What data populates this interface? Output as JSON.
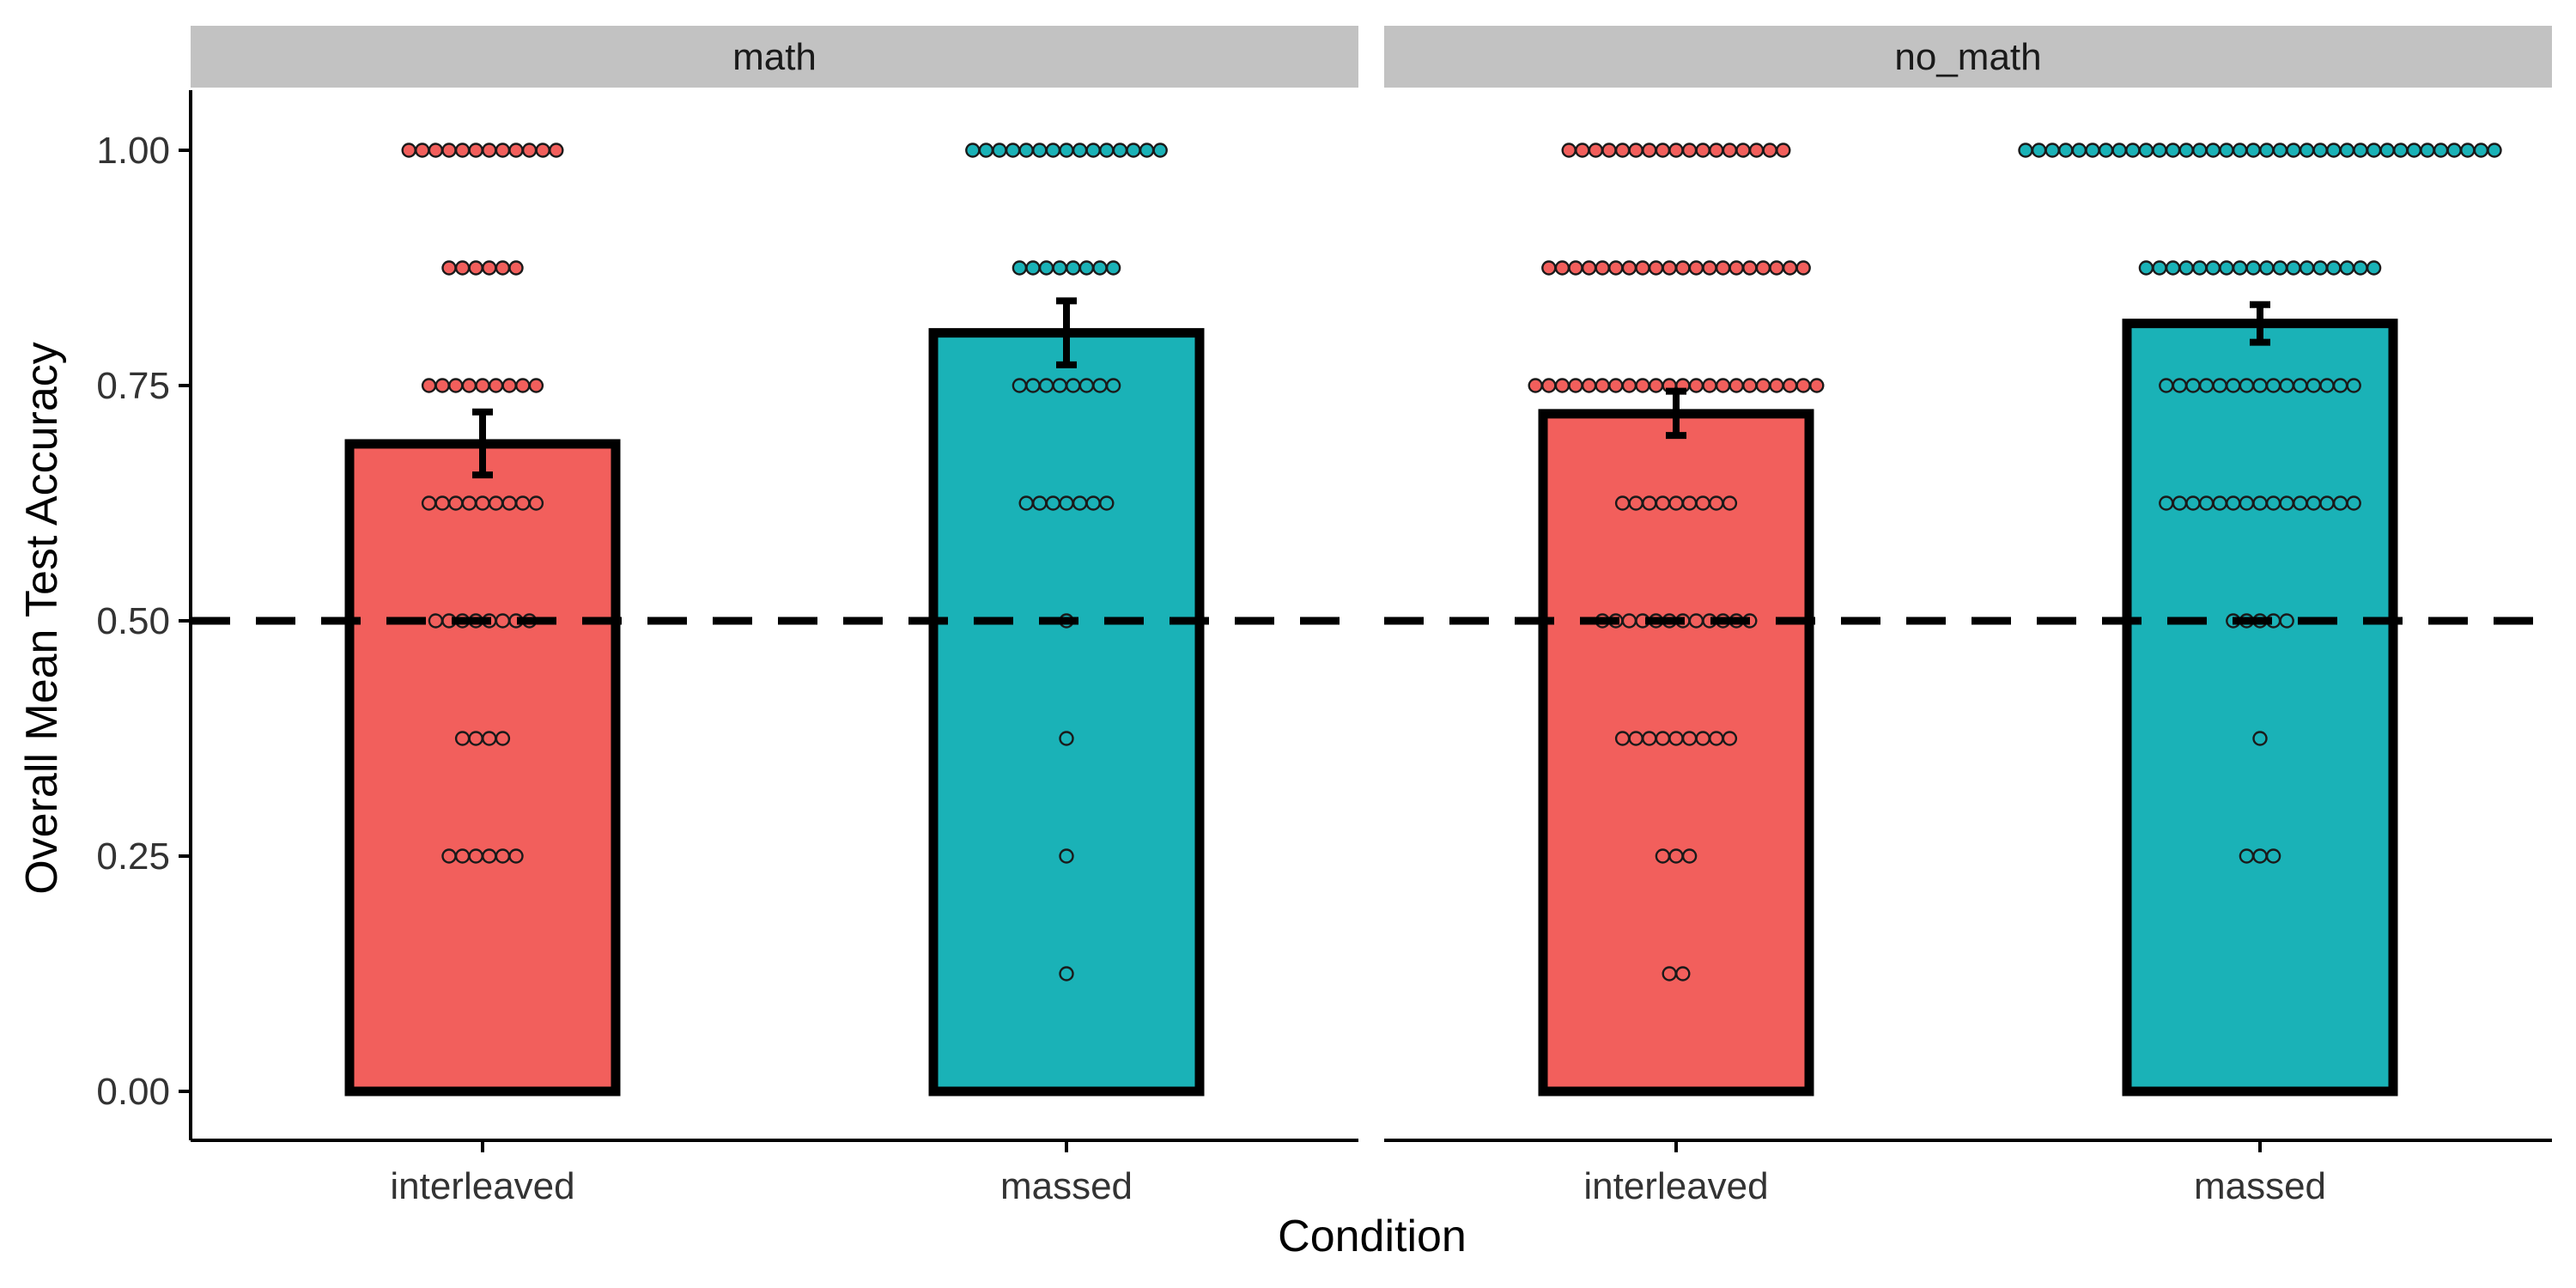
{
  "chart_data": {
    "type": "bar",
    "xlabel": "Condition",
    "ylabel": "Overall Mean Test Accuracy",
    "ylim": [
      0,
      1.05
    ],
    "yticks": [
      "0.00",
      "0.25",
      "0.50",
      "0.75",
      "1.00"
    ],
    "reference_line": 0.5,
    "grid": false,
    "legend": "none",
    "colors": {
      "interleaved": "#F25F5C",
      "massed": "#1AB2B7"
    },
    "panels": [
      {
        "facet": "math",
        "bars": [
          {
            "category": "interleaved",
            "mean": 0.688,
            "se_low": 0.655,
            "se_high": 0.722,
            "points": [
              {
                "y": 1.0,
                "n": 12
              },
              {
                "y": 0.875,
                "n": 6
              },
              {
                "y": 0.75,
                "n": 9
              },
              {
                "y": 0.625,
                "n": 9
              },
              {
                "y": 0.5,
                "n": 8
              },
              {
                "y": 0.375,
                "n": 4
              },
              {
                "y": 0.25,
                "n": 6
              }
            ]
          },
          {
            "category": "massed",
            "mean": 0.806,
            "se_low": 0.772,
            "se_high": 0.84,
            "points": [
              {
                "y": 1.0,
                "n": 15
              },
              {
                "y": 0.875,
                "n": 8
              },
              {
                "y": 0.75,
                "n": 8
              },
              {
                "y": 0.625,
                "n": 7
              },
              {
                "y": 0.5,
                "n": 1
              },
              {
                "y": 0.375,
                "n": 1
              },
              {
                "y": 0.25,
                "n": 1
              },
              {
                "y": 0.125,
                "n": 1
              }
            ]
          }
        ]
      },
      {
        "facet": "no_math",
        "bars": [
          {
            "category": "interleaved",
            "mean": 0.72,
            "se_low": 0.697,
            "se_high": 0.744,
            "points": [
              {
                "y": 1.0,
                "n": 17
              },
              {
                "y": 0.875,
                "n": 20
              },
              {
                "y": 0.75,
                "n": 22
              },
              {
                "y": 0.625,
                "n": 9
              },
              {
                "y": 0.5,
                "n": 12
              },
              {
                "y": 0.375,
                "n": 9
              },
              {
                "y": 0.25,
                "n": 3
              },
              {
                "y": 0.125,
                "n": 2
              }
            ]
          },
          {
            "category": "massed",
            "mean": 0.816,
            "se_low": 0.796,
            "se_high": 0.836,
            "points": [
              {
                "y": 1.0,
                "n": 36
              },
              {
                "y": 0.875,
                "n": 18
              },
              {
                "y": 0.75,
                "n": 15
              },
              {
                "y": 0.625,
                "n": 15
              },
              {
                "y": 0.5,
                "n": 5
              },
              {
                "y": 0.375,
                "n": 1
              },
              {
                "y": 0.25,
                "n": 3
              }
            ]
          }
        ]
      }
    ]
  }
}
